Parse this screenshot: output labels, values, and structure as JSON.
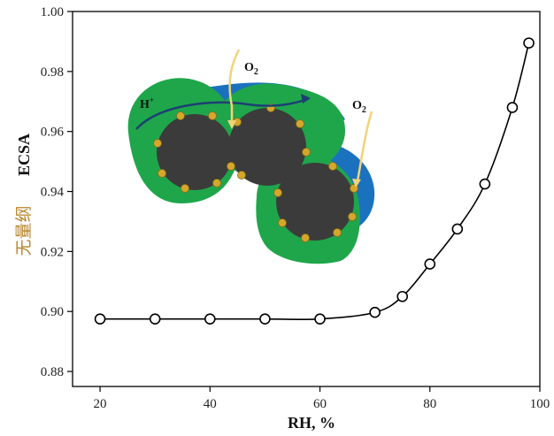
{
  "chart_data": {
    "type": "line",
    "xlabel": "RH, %",
    "ylabel_cjk": "无量纲",
    "ylabel_latin": "ECSA",
    "xlim": [
      15,
      100
    ],
    "ylim": [
      0.875,
      1.0
    ],
    "x_ticks": [
      20,
      40,
      60,
      80,
      100
    ],
    "x_tick_labels": [
      "20",
      "40",
      "60",
      "80",
      "100"
    ],
    "y_ticks": [
      0.88,
      0.9,
      0.92,
      0.94,
      0.96,
      0.98,
      1.0
    ],
    "y_tick_labels": [
      "0.88",
      "0.90",
      "0.92",
      "0.94",
      "0.96",
      "0.98",
      "1.00"
    ],
    "x": [
      20,
      30,
      40,
      50,
      60,
      70,
      75,
      80,
      85,
      90,
      95,
      98
    ],
    "values": [
      0.8975,
      0.8975,
      0.8975,
      0.8975,
      0.8975,
      0.8997,
      0.905,
      0.9158,
      0.9275,
      0.9425,
      0.968,
      0.9895
    ],
    "marker": "open-circle",
    "grid": false,
    "colors": {
      "line": "#000000",
      "ylabel_cjk": "#b5832a"
    },
    "inset": {
      "proton_label": "H+",
      "oxygen_label": "O2",
      "colors": {
        "ionomer": "#1fa64b",
        "water": "#1a72bf",
        "carbon": "#3b3b3b",
        "platinum": "#d4a72c",
        "arrow": "#f2d27a",
        "proton_arrow": "#1d3f73"
      }
    }
  }
}
